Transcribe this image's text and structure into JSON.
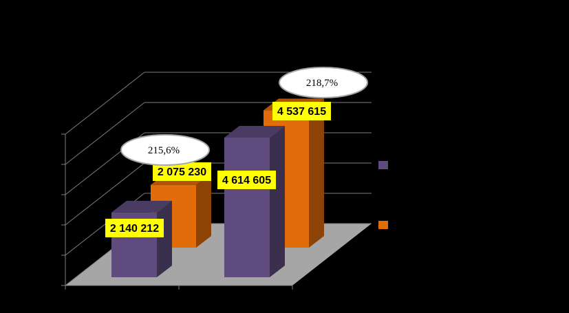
{
  "chart_data": {
    "type": "bar",
    "categories": [
      "",
      ""
    ],
    "series": [
      {
        "color": "#5F4B7E",
        "values": [
          2140212,
          4614605
        ]
      },
      {
        "color": "#E36C0A",
        "values": [
          2075230,
          4537615
        ]
      }
    ],
    "data_labels": [
      [
        "2 140 212",
        "4 614 605"
      ],
      [
        "2 075 230",
        "4 537 615"
      ]
    ],
    "growth_labels": [
      "215,6%",
      "218,7%"
    ],
    "ylim": [
      0,
      5000000
    ],
    "grid": true,
    "legend_position": "right"
  }
}
